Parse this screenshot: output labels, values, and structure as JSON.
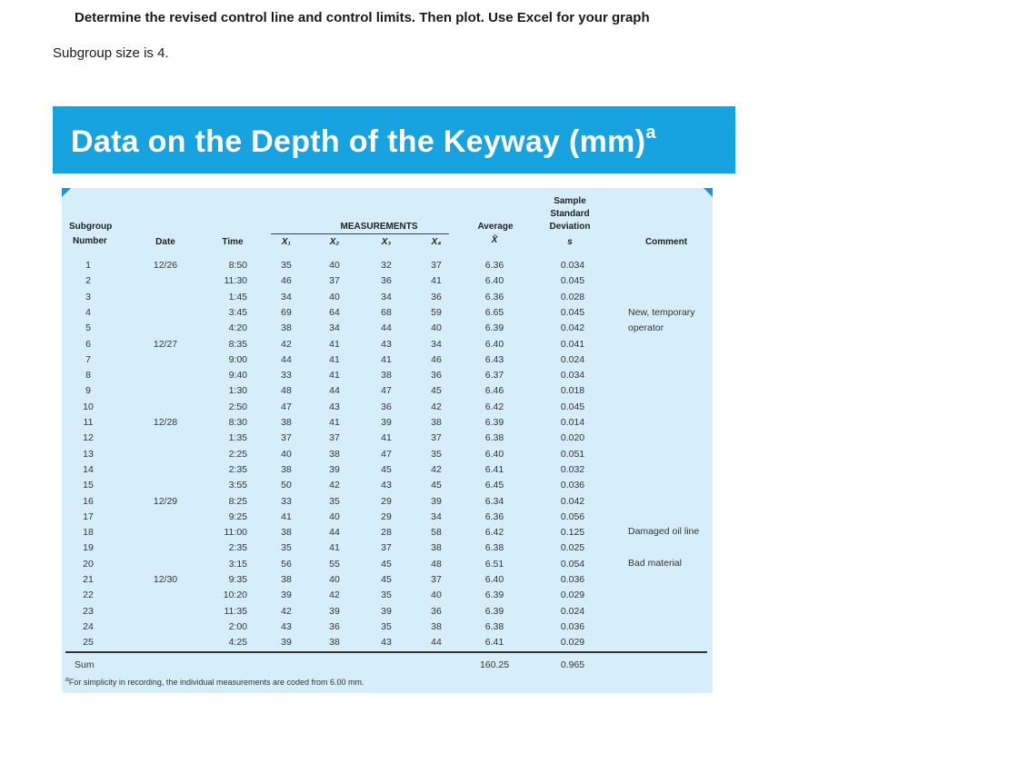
{
  "heading": "Determine the revised control line and control limits.  Then plot. Use Excel for your graph",
  "subtitle": "Subgroup size is 4.",
  "banner": {
    "title": "Data on the Depth of the Keyway (mm)",
    "title_sup": "a"
  },
  "table": {
    "headers": {
      "subgroup": "Subgroup",
      "number": "Number",
      "date": "Date",
      "time": "Time",
      "measurements": "MEASUREMENTS",
      "x1": "X₁",
      "x2": "X₂",
      "x3": "X₃",
      "x4": "X₄",
      "average": "Average",
      "xbar": "X̄",
      "sample": "Sample",
      "standard": "Standard",
      "deviation": "Deviation",
      "s": "s",
      "comment": "Comment"
    },
    "rows": [
      {
        "n": "1",
        "date": "12/26",
        "time": "8:50",
        "x1": "35",
        "x2": "40",
        "x3": "32",
        "x4": "37",
        "avg": "6.36",
        "s": "0.034"
      },
      {
        "n": "2",
        "date": "",
        "time": "11:30",
        "x1": "46",
        "x2": "37",
        "x3": "36",
        "x4": "41",
        "avg": "6.40",
        "s": "0.045"
      },
      {
        "n": "3",
        "date": "",
        "time": "1:45",
        "x1": "34",
        "x2": "40",
        "x3": "34",
        "x4": "36",
        "avg": "6.36",
        "s": "0.028"
      },
      {
        "n": "4",
        "date": "",
        "time": "3:45",
        "x1": "69",
        "x2": "64",
        "x3": "68",
        "x4": "59",
        "avg": "6.65",
        "s": "0.045"
      },
      {
        "n": "5",
        "date": "",
        "time": "4:20",
        "x1": "38",
        "x2": "34",
        "x3": "44",
        "x4": "40",
        "avg": "6.39",
        "s": "0.042"
      },
      {
        "n": "6",
        "date": "12/27",
        "time": "8:35",
        "x1": "42",
        "x2": "41",
        "x3": "43",
        "x4": "34",
        "avg": "6.40",
        "s": "0.041"
      },
      {
        "n": "7",
        "date": "",
        "time": "9:00",
        "x1": "44",
        "x2": "41",
        "x3": "41",
        "x4": "46",
        "avg": "6.43",
        "s": "0.024"
      },
      {
        "n": "8",
        "date": "",
        "time": "9:40",
        "x1": "33",
        "x2": "41",
        "x3": "38",
        "x4": "36",
        "avg": "6.37",
        "s": "0.034"
      },
      {
        "n": "9",
        "date": "",
        "time": "1:30",
        "x1": "48",
        "x2": "44",
        "x3": "47",
        "x4": "45",
        "avg": "6.46",
        "s": "0.018"
      },
      {
        "n": "10",
        "date": "",
        "time": "2:50",
        "x1": "47",
        "x2": "43",
        "x3": "36",
        "x4": "42",
        "avg": "6.42",
        "s": "0.045"
      },
      {
        "n": "11",
        "date": "12/28",
        "time": "8:30",
        "x1": "38",
        "x2": "41",
        "x3": "39",
        "x4": "38",
        "avg": "6.39",
        "s": "0.014"
      },
      {
        "n": "12",
        "date": "",
        "time": "1:35",
        "x1": "37",
        "x2": "37",
        "x3": "41",
        "x4": "37",
        "avg": "6.38",
        "s": "0.020"
      },
      {
        "n": "13",
        "date": "",
        "time": "2:25",
        "x1": "40",
        "x2": "38",
        "x3": "47",
        "x4": "35",
        "avg": "6.40",
        "s": "0.051"
      },
      {
        "n": "14",
        "date": "",
        "time": "2:35",
        "x1": "38",
        "x2": "39",
        "x3": "45",
        "x4": "42",
        "avg": "6.41",
        "s": "0.032"
      },
      {
        "n": "15",
        "date": "",
        "time": "3:55",
        "x1": "50",
        "x2": "42",
        "x3": "43",
        "x4": "45",
        "avg": "6.45",
        "s": "0.036"
      },
      {
        "n": "16",
        "date": "12/29",
        "time": "8:25",
        "x1": "33",
        "x2": "35",
        "x3": "29",
        "x4": "39",
        "avg": "6.34",
        "s": "0.042"
      },
      {
        "n": "17",
        "date": "",
        "time": "9:25",
        "x1": "41",
        "x2": "40",
        "x3": "29",
        "x4": "34",
        "avg": "6.36",
        "s": "0.056"
      },
      {
        "n": "18",
        "date": "",
        "time": "11:00",
        "x1": "38",
        "x2": "44",
        "x3": "28",
        "x4": "58",
        "avg": "6.42",
        "s": "0.125"
      },
      {
        "n": "19",
        "date": "",
        "time": "2:35",
        "x1": "35",
        "x2": "41",
        "x3": "37",
        "x4": "38",
        "avg": "6.38",
        "s": "0.025"
      },
      {
        "n": "20",
        "date": "",
        "time": "3:15",
        "x1": "56",
        "x2": "55",
        "x3": "45",
        "x4": "48",
        "avg": "6.51",
        "s": "0.054"
      },
      {
        "n": "21",
        "date": "12/30",
        "time": "9:35",
        "x1": "38",
        "x2": "40",
        "x3": "45",
        "x4": "37",
        "avg": "6.40",
        "s": "0.036"
      },
      {
        "n": "22",
        "date": "",
        "time": "10:20",
        "x1": "39",
        "x2": "42",
        "x3": "35",
        "x4": "40",
        "avg": "6.39",
        "s": "0.029"
      },
      {
        "n": "23",
        "date": "",
        "time": "11:35",
        "x1": "42",
        "x2": "39",
        "x3": "39",
        "x4": "36",
        "avg": "6.39",
        "s": "0.024"
      },
      {
        "n": "24",
        "date": "",
        "time": "2:00",
        "x1": "43",
        "x2": "36",
        "x3": "35",
        "x4": "38",
        "avg": "6.38",
        "s": "0.036"
      },
      {
        "n": "25",
        "date": "",
        "time": "4:25",
        "x1": "39",
        "x2": "38",
        "x3": "43",
        "x4": "44",
        "avg": "6.41",
        "s": "0.029"
      }
    ],
    "comments": {
      "row4_line1": "New, temporary",
      "row4_line2": "operator",
      "row18": "Damaged oil line",
      "row20": "Bad material"
    },
    "sum": {
      "label": "Sum",
      "avg": "160.25",
      "s": "0.965"
    }
  },
  "footnote": {
    "sup": "a",
    "text": "For simplicity in recording, the individual measurements are coded from 6.00 mm."
  },
  "colors": {
    "banner": "#17a3e0",
    "panel": "#d6eef9",
    "corner": "#1b93d6"
  }
}
